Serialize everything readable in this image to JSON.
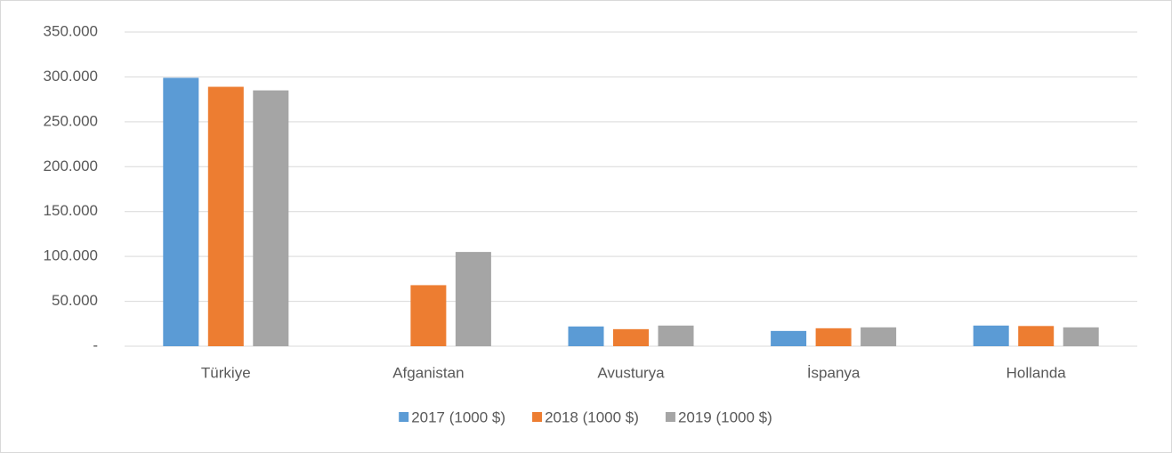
{
  "chart_data": {
    "type": "bar",
    "categories": [
      "Türkiye",
      "Afganistan",
      "Avusturya",
      "İspanya",
      "Hollanda"
    ],
    "series": [
      {
        "name": "2017 (1000 $)",
        "color": "#5b9bd5",
        "values": [
          299000,
          0,
          22000,
          17000,
          23000
        ]
      },
      {
        "name": "2018 (1000 $)",
        "color": "#ed7d31",
        "values": [
          289000,
          68000,
          19000,
          20000,
          22500
        ]
      },
      {
        "name": "2019 (1000 $)",
        "color": "#a5a5a5",
        "values": [
          285000,
          105000,
          23000,
          21000,
          21000
        ]
      }
    ],
    "ylim": [
      0,
      350000
    ],
    "yticks": [
      {
        "value": 0,
        "label": "-"
      },
      {
        "value": 50000,
        "label": "50.000"
      },
      {
        "value": 100000,
        "label": "100.000"
      },
      {
        "value": 150000,
        "label": "150.000"
      },
      {
        "value": 200000,
        "label": "200.000"
      },
      {
        "value": 250000,
        "label": "250.000"
      },
      {
        "value": 300000,
        "label": "300.000"
      },
      {
        "value": 350000,
        "label": "350.000"
      }
    ],
    "grid": true,
    "legend": "bottom"
  }
}
